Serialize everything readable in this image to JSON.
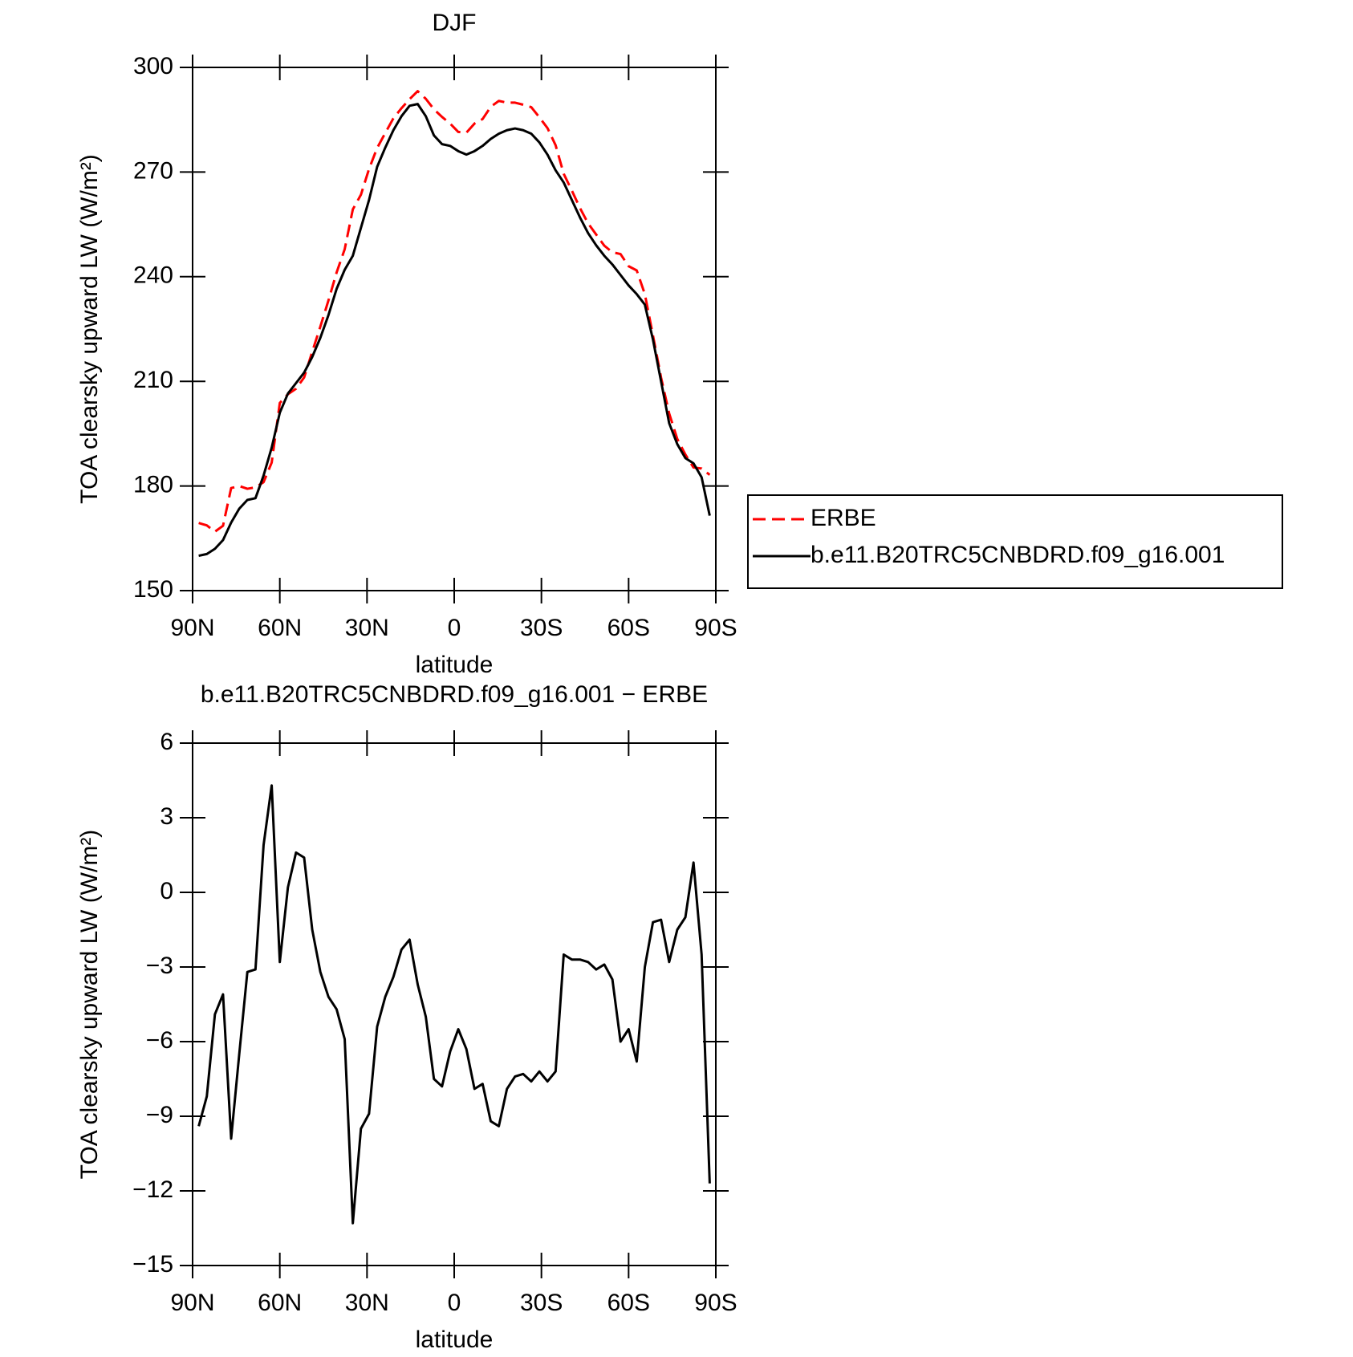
{
  "chart_data": [
    {
      "type": "line",
      "title": "DJF",
      "x_label": "latitude",
      "y_label": "TOA clearsky upward LW (W/m²)",
      "x": [
        87.9,
        85.11,
        82.32,
        79.53,
        76.74,
        73.95,
        71.16,
        68.37,
        65.58,
        62.79,
        60.0,
        57.21,
        54.42,
        51.63,
        48.84,
        46.05,
        43.26,
        40.46,
        37.67,
        34.88,
        32.09,
        29.3,
        26.51,
        23.72,
        20.93,
        18.14,
        15.35,
        12.56,
        9.77,
        6.98,
        4.19,
        1.4,
        -1.4,
        -4.19,
        -6.98,
        -9.77,
        -12.56,
        -15.35,
        -18.14,
        -20.93,
        -23.72,
        -26.51,
        -29.3,
        -32.09,
        -34.88,
        -37.67,
        -40.46,
        -43.26,
        -46.05,
        -48.84,
        -51.63,
        -54.42,
        -57.21,
        -60.0,
        -62.79,
        -65.58,
        -68.37,
        -71.16,
        -73.95,
        -76.74,
        -79.53,
        -82.32,
        -85.11,
        -87.9
      ],
      "series": [
        {
          "name": "ERBE",
          "color": "#ff0000",
          "line_style": "dashed",
          "values": [
            169.4,
            168.7,
            166.9,
            168.6,
            179.4,
            180,
            179.2,
            179.6,
            181.1,
            186.7,
            203.8,
            206.3,
            207.9,
            211.1,
            218.5,
            225.7,
            233.2,
            241.2,
            247.9,
            259.3,
            263.5,
            270.9,
            276.9,
            281.2,
            285.4,
            288.3,
            290.9,
            293.2,
            291,
            288,
            285.8,
            283.9,
            281.5,
            281.3,
            283.9,
            285.2,
            288.7,
            290.4,
            289.9,
            289.9,
            289.3,
            288.6,
            285.7,
            282.6,
            277.7,
            269.5,
            264.7,
            259.7,
            255.3,
            252.1,
            248.9,
            247,
            246.5,
            243,
            241.8,
            235,
            223.2,
            211.1,
            200.8,
            193.5,
            189,
            185.3,
            185,
            183.2
          ]
        },
        {
          "name": "b.e11.B20TRC5CNBDRD.f09_g16.001",
          "color": "#000000",
          "line_style": "solid",
          "values": [
            160,
            160.5,
            162,
            164.5,
            169.5,
            173.5,
            176,
            176.5,
            183,
            191,
            201,
            206.5,
            209.5,
            212.5,
            217,
            222.5,
            229,
            236.5,
            242,
            246,
            254,
            262,
            271.5,
            277,
            282,
            286,
            289,
            289.5,
            286,
            280.5,
            278,
            277.5,
            276,
            275,
            276,
            277.5,
            279.5,
            281,
            282,
            282.5,
            282,
            281,
            278.5,
            275,
            270.5,
            267,
            262,
            257,
            252.5,
            249,
            246,
            243.5,
            240.5,
            237.5,
            235,
            232,
            222,
            210,
            198,
            192,
            188,
            186.5,
            182.5,
            171.5
          ]
        }
      ],
      "xlim": [
        90,
        -90
      ],
      "xticks": [
        {
          "value": 90,
          "label": "90N"
        },
        {
          "value": 60,
          "label": "60N"
        },
        {
          "value": 30,
          "label": "30N"
        },
        0,
        {
          "value": -30,
          "label": "30S"
        },
        {
          "value": -60,
          "label": "60S"
        },
        {
          "value": -90,
          "label": "90S"
        }
      ],
      "ylim": [
        150,
        300
      ],
      "yticks": [
        150,
        180,
        210,
        240,
        270,
        300
      ],
      "legend": "right"
    },
    {
      "type": "line",
      "title": "b.e11.B20TRC5CNBDRD.f09_g16.001 − ERBE",
      "x_label": "latitude",
      "y_label": "TOA clearsky upward LW (W/m²)",
      "x": [
        87.9,
        85.11,
        82.32,
        79.53,
        76.74,
        73.95,
        71.16,
        68.37,
        65.58,
        62.79,
        60.0,
        57.21,
        54.42,
        51.63,
        48.84,
        46.05,
        43.26,
        40.46,
        37.67,
        34.88,
        32.09,
        29.3,
        26.51,
        23.72,
        20.93,
        18.14,
        15.35,
        12.56,
        9.77,
        6.98,
        4.19,
        1.4,
        -1.4,
        -4.19,
        -6.98,
        -9.77,
        -12.56,
        -15.35,
        -18.14,
        -20.93,
        -23.72,
        -26.51,
        -29.3,
        -32.09,
        -34.88,
        -37.67,
        -40.46,
        -43.26,
        -46.05,
        -48.84,
        -51.63,
        -54.42,
        -57.21,
        -60.0,
        -62.79,
        -65.58,
        -68.37,
        -71.16,
        -73.95,
        -76.74,
        -79.53,
        -82.32,
        -85.11,
        -87.9
      ],
      "color": "#000000",
      "values": [
        -9.4,
        -8.2,
        -4.9,
        -4.1,
        -9.9,
        -6.5,
        -3.2,
        -3.1,
        1.9,
        4.3,
        -2.8,
        0.2,
        1.6,
        1.4,
        -1.5,
        -3.2,
        -4.2,
        -4.7,
        -5.9,
        -13.3,
        -9.5,
        -8.9,
        -5.4,
        -4.2,
        -3.4,
        -2.3,
        -1.9,
        -3.7,
        -5.0,
        -7.5,
        -7.8,
        -6.4,
        -5.5,
        -6.3,
        -7.9,
        -7.7,
        -9.2,
        -9.4,
        -7.9,
        -7.4,
        -7.3,
        -7.6,
        -7.2,
        -7.6,
        -7.2,
        -2.5,
        -2.7,
        -2.7,
        -2.8,
        -3.1,
        -2.9,
        -3.5,
        -6.0,
        -5.5,
        -6.8,
        -3.0,
        -1.2,
        -1.1,
        -2.8,
        -1.5,
        -1.0,
        1.2,
        -2.5,
        -11.7
      ],
      "xlim": [
        90,
        -90
      ],
      "xticks": [
        {
          "value": 90,
          "label": "90N"
        },
        {
          "value": 60,
          "label": "60N"
        },
        {
          "value": 30,
          "label": "30N"
        },
        0,
        {
          "value": -30,
          "label": "30S"
        },
        {
          "value": -60,
          "label": "60S"
        },
        {
          "value": -90,
          "label": "90S"
        }
      ],
      "ylim": [
        -15,
        6
      ],
      "yticks": [
        {
          "value": -15,
          "label": "−15"
        },
        {
          "value": -12,
          "label": "−12"
        },
        {
          "value": -9,
          "label": "−9"
        },
        {
          "value": -6,
          "label": "−6"
        },
        {
          "value": -3,
          "label": "−3"
        },
        0,
        3,
        6
      ]
    }
  ]
}
